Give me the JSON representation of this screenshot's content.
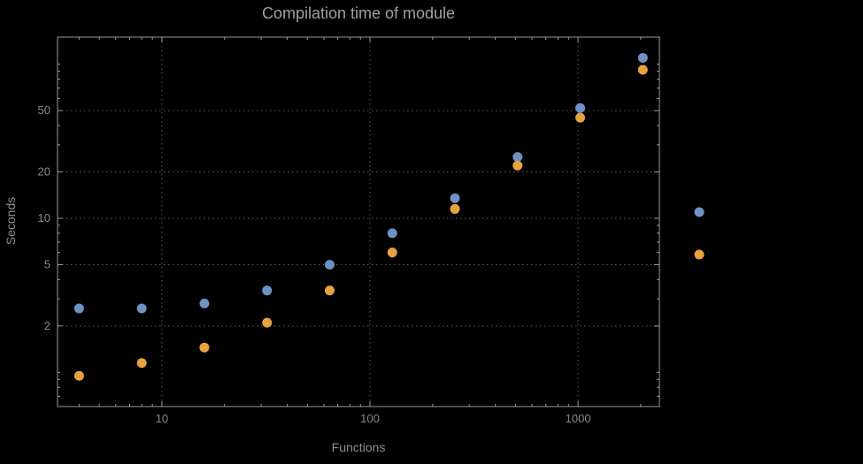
{
  "chart_data": {
    "type": "scatter",
    "title": "Compilation time of module",
    "xlabel": "Functions",
    "ylabel": "Seconds",
    "x_scale": "log",
    "y_scale": "log",
    "grid": "dotted",
    "x_range": [
      3.15,
      2460
    ],
    "y_range": [
      0.6,
      150
    ],
    "x_ticks": [
      10,
      100,
      1000
    ],
    "y_ticks": [
      2,
      5,
      10,
      20,
      50
    ],
    "x": [
      4,
      8,
      16,
      32,
      64,
      128,
      256,
      512,
      1024,
      2048
    ],
    "series": [
      {
        "label": "",
        "color": "#6d92c5",
        "values": [
          2.6,
          2.6,
          2.8,
          3.4,
          5.0,
          8.0,
          13.5,
          25,
          52,
          110
        ]
      },
      {
        "label": "",
        "color": "#e8a33b",
        "values": [
          0.95,
          1.15,
          1.45,
          2.1,
          3.4,
          6.0,
          11.5,
          22,
          45,
          92
        ]
      }
    ],
    "legend_markers": [
      {
        "series": 0,
        "x": 790,
        "y": 240
      },
      {
        "series": 1,
        "x": 790,
        "y": 288
      }
    ]
  },
  "colors": {
    "background": "#000000",
    "frame": "#9a9a9a",
    "grid": "#5e5e5e",
    "title": "#a0a0a0",
    "axis_label": "#8f8f8f",
    "tick_label": "#8a8a8a"
  }
}
